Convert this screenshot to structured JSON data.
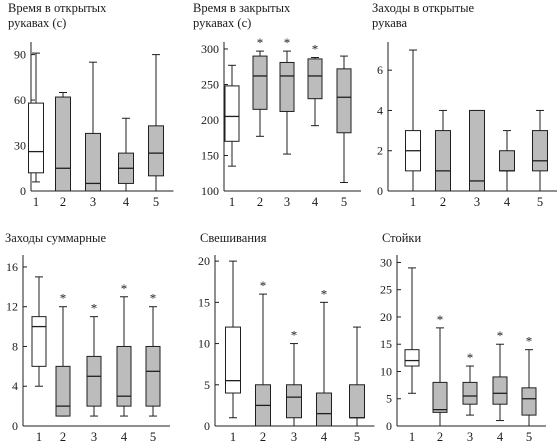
{
  "chart_data": [
    {
      "type": "box",
      "title_lines": [
        "Время в открытых",
        "рукавах (с)"
      ],
      "categories": [
        "1",
        "2",
        "3",
        "4",
        "5"
      ],
      "ylim": [
        0,
        97
      ],
      "yticks": [
        "0",
        "30",
        "60",
        "90"
      ],
      "ytick_values": [
        0,
        30,
        60,
        90
      ],
      "boxes": [
        {
          "min": 6,
          "q1": 12,
          "median": 26,
          "q3": 58,
          "max": 91,
          "filled": false,
          "sig": ""
        },
        {
          "min": 0,
          "q1": 0,
          "median": 15,
          "q3": 62,
          "max": 65,
          "filled": true,
          "sig": ""
        },
        {
          "min": 0,
          "q1": 0,
          "median": 5,
          "q3": 38,
          "max": 85,
          "filled": true,
          "sig": ""
        },
        {
          "min": 0,
          "q1": 5,
          "median": 15,
          "q3": 25,
          "max": 48,
          "filled": true,
          "sig": ""
        },
        {
          "min": 0,
          "q1": 10,
          "median": 25,
          "q3": 43,
          "max": 90,
          "filled": true,
          "sig": ""
        }
      ]
    },
    {
      "type": "box",
      "title_lines": [
        "Время в закрытых",
        "рукавах (с)"
      ],
      "categories": [
        "1",
        "2",
        "3",
        "4",
        "5"
      ],
      "ylim": [
        100,
        307
      ],
      "yticks": [
        "100",
        "150",
        "200",
        "250",
        "300"
      ],
      "ytick_values": [
        100,
        150,
        200,
        250,
        300
      ],
      "boxes": [
        {
          "min": 135,
          "q1": 170,
          "median": 205,
          "q3": 248,
          "max": 277,
          "filled": false,
          "sig": ""
        },
        {
          "min": 177,
          "q1": 215,
          "median": 262,
          "q3": 290,
          "max": 297,
          "filled": true,
          "sig": "*"
        },
        {
          "min": 152,
          "q1": 212,
          "median": 262,
          "q3": 281,
          "max": 297,
          "filled": true,
          "sig": "*"
        },
        {
          "min": 192,
          "q1": 230,
          "median": 262,
          "q3": 286,
          "max": 288,
          "filled": true,
          "sig": "*"
        },
        {
          "min": 112,
          "q1": 182,
          "median": 232,
          "q3": 272,
          "max": 290,
          "filled": true,
          "sig": ""
        }
      ]
    },
    {
      "type": "box",
      "title_lines": [
        "Заходы в открытые",
        "рукава"
      ],
      "categories": [
        "1",
        "2",
        "3",
        "4",
        "5"
      ],
      "ylim": [
        0,
        7.3
      ],
      "yticks": [
        "0",
        "2",
        "4",
        "6"
      ],
      "ytick_values": [
        0,
        2,
        4,
        6
      ],
      "boxes": [
        {
          "min": 0,
          "q1": 1,
          "median": 2,
          "q3": 3,
          "max": 7,
          "filled": false,
          "sig": ""
        },
        {
          "min": 0,
          "q1": 0,
          "median": 1,
          "q3": 3,
          "max": 4,
          "filled": true,
          "sig": ""
        },
        {
          "min": 0,
          "q1": 0,
          "median": 0.5,
          "q3": 4,
          "max": 4,
          "filled": true,
          "sig": ""
        },
        {
          "min": 0,
          "q1": 1,
          "median": 1,
          "q3": 2,
          "max": 3,
          "filled": true,
          "sig": ""
        },
        {
          "min": 0,
          "q1": 1,
          "median": 1.5,
          "q3": 3,
          "max": 4,
          "filled": true,
          "sig": ""
        }
      ]
    },
    {
      "type": "box",
      "title_lines": [
        "Заходы суммарные"
      ],
      "categories": [
        "1",
        "2",
        "3",
        "4",
        "5"
      ],
      "ylim": [
        0,
        17
      ],
      "yticks": [
        "0",
        "4",
        "8",
        "12",
        "16"
      ],
      "ytick_values": [
        0,
        4,
        8,
        12,
        16
      ],
      "boxes": [
        {
          "min": 4,
          "q1": 6,
          "median": 10,
          "q3": 11,
          "max": 15,
          "filled": false,
          "sig": ""
        },
        {
          "min": 1,
          "q1": 1,
          "median": 2,
          "q3": 6,
          "max": 12,
          "filled": true,
          "sig": "*"
        },
        {
          "min": 1,
          "q1": 2,
          "median": 5,
          "q3": 7,
          "max": 11,
          "filled": true,
          "sig": "*"
        },
        {
          "min": 1,
          "q1": 2,
          "median": 3,
          "q3": 8,
          "max": 13,
          "filled": true,
          "sig": "*"
        },
        {
          "min": 1,
          "q1": 2,
          "median": 5.5,
          "q3": 8,
          "max": 12,
          "filled": true,
          "sig": "*"
        }
      ]
    },
    {
      "type": "box",
      "title_lines": [
        "Свешивания"
      ],
      "categories": [
        "1",
        "2",
        "3",
        "4",
        "5"
      ],
      "ylim": [
        0,
        20.5
      ],
      "yticks": [
        "0",
        "5",
        "10",
        "15",
        "20"
      ],
      "ytick_values": [
        0,
        5,
        10,
        15,
        20
      ],
      "boxes": [
        {
          "min": 1,
          "q1": 4,
          "median": 5.5,
          "q3": 12,
          "max": 20,
          "filled": false,
          "sig": ""
        },
        {
          "min": 0,
          "q1": 0,
          "median": 2.5,
          "q3": 5,
          "max": 16,
          "filled": true,
          "sig": "*"
        },
        {
          "min": 0,
          "q1": 1,
          "median": 3.5,
          "q3": 5,
          "max": 10,
          "filled": true,
          "sig": "*"
        },
        {
          "min": 0,
          "q1": 0,
          "median": 1.5,
          "q3": 4,
          "max": 15,
          "filled": true,
          "sig": "*"
        },
        {
          "min": 0,
          "q1": 1,
          "median": 1,
          "q3": 5,
          "max": 12,
          "filled": true,
          "sig": ""
        }
      ]
    },
    {
      "type": "box",
      "title_lines": [
        "Стойки"
      ],
      "categories": [
        "1",
        "2",
        "3",
        "4",
        "5"
      ],
      "ylim": [
        0,
        31
      ],
      "yticks": [
        "0",
        "5",
        "10",
        "15",
        "20",
        "25",
        "30"
      ],
      "ytick_values": [
        0,
        5,
        10,
        15,
        20,
        25,
        30
      ],
      "boxes": [
        {
          "min": 6,
          "q1": 11,
          "median": 12,
          "q3": 14,
          "max": 29,
          "filled": false,
          "sig": ""
        },
        {
          "min": 0,
          "q1": 2.5,
          "median": 3,
          "q3": 8,
          "max": 18,
          "filled": true,
          "sig": "*"
        },
        {
          "min": 2,
          "q1": 4,
          "median": 5.5,
          "q3": 8,
          "max": 11,
          "filled": true,
          "sig": "*"
        },
        {
          "min": 1,
          "q1": 4,
          "median": 6,
          "q3": 9,
          "max": 15,
          "filled": true,
          "sig": "*"
        },
        {
          "min": 0,
          "q1": 2,
          "median": 5,
          "q3": 7,
          "max": 14,
          "filled": true,
          "sig": "*"
        }
      ]
    }
  ]
}
